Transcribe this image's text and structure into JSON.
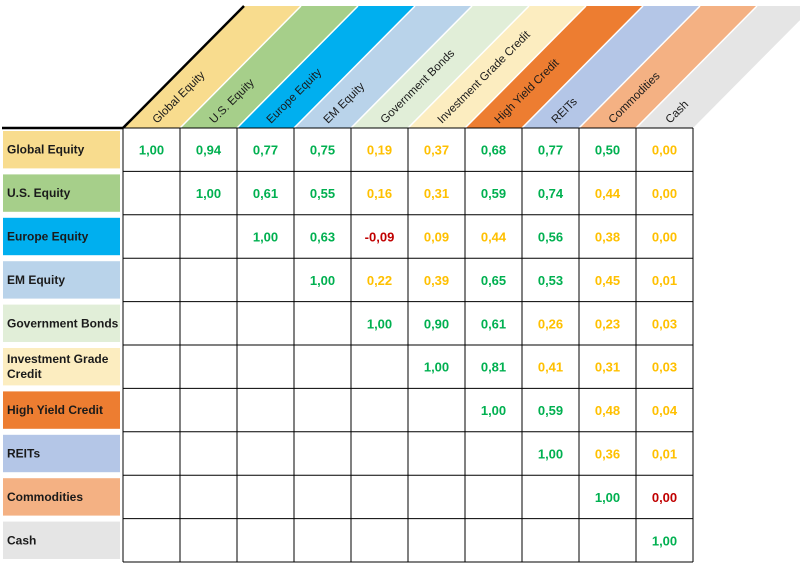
{
  "chart_data": {
    "type": "table",
    "assets": [
      {
        "label": "Global Equity",
        "color": "#f8dc8e"
      },
      {
        "label": "U.S. Equity",
        "color": "#a6cf8a"
      },
      {
        "label": "Europe Equity",
        "color": "#00afef"
      },
      {
        "label": "EM Equity",
        "color": "#b9d3ea"
      },
      {
        "label": "Government Bonds",
        "color": "#e1eed8"
      },
      {
        "label": "Investment Grade Credit",
        "color": "#fcedc0"
      },
      {
        "label": "High Yield Credit",
        "color": "#ed7d31"
      },
      {
        "label": "REITs",
        "color": "#b4c6e7"
      },
      {
        "label": "Commodities",
        "color": "#f4b183"
      },
      {
        "label": "Cash",
        "color": "#e5e5e5"
      }
    ],
    "header_labels": [
      "Global Equity",
      "U.S. Equity",
      "Europe Equity",
      "EM Equity",
      "Government Bonds",
      "Investment Grade Credit",
      "High Yield Credit",
      "REITs",
      "Commodities",
      "Cash"
    ],
    "row_labels": [
      [
        "Global Equity"
      ],
      [
        "U.S. Equity"
      ],
      [
        "Europe Equity"
      ],
      [
        "EM Equity"
      ],
      [
        "Government Bonds"
      ],
      [
        "Investment Grade",
        "Credit"
      ],
      [
        "High Yield Credit"
      ],
      [
        "REITs"
      ],
      [
        "Commodities"
      ],
      [
        "Cash"
      ]
    ],
    "matrix": [
      [
        "1,00",
        "0,94",
        "0,77",
        "0,75",
        "0,19",
        "0,37",
        "0,68",
        "0,77",
        "0,50",
        "0,00"
      ],
      [
        "",
        "1,00",
        "0,61",
        "0,55",
        "0,16",
        "0,31",
        "0,59",
        "0,74",
        "0,44",
        "0,00"
      ],
      [
        "",
        "",
        "1,00",
        "0,63",
        "-0,09",
        "0,09",
        "0,44",
        "0,56",
        "0,38",
        "0,00"
      ],
      [
        "",
        "",
        "",
        "1,00",
        "0,22",
        "0,39",
        "0,65",
        "0,53",
        "0,45",
        "0,01"
      ],
      [
        "",
        "",
        "",
        "",
        "1,00",
        "0,90",
        "0,61",
        "0,26",
        "0,23",
        "0,03"
      ],
      [
        "",
        "",
        "",
        "",
        "",
        "1,00",
        "0,81",
        "0,41",
        "0,31",
        "0,03"
      ],
      [
        "",
        "",
        "",
        "",
        "",
        "",
        "1,00",
        "0,59",
        "0,48",
        "0,04"
      ],
      [
        "",
        "",
        "",
        "",
        "",
        "",
        "",
        "1,00",
        "0,36",
        "0,01"
      ],
      [
        "",
        "",
        "",
        "",
        "",
        "",
        "",
        "",
        "1,00",
        "0,00"
      ],
      [
        "",
        "",
        "",
        "",
        "",
        "",
        "",
        "",
        "",
        "1,00"
      ]
    ],
    "value_colors": {
      "high": "#00b050",
      "mid": "#ffc000",
      "low": "#c00000"
    }
  }
}
